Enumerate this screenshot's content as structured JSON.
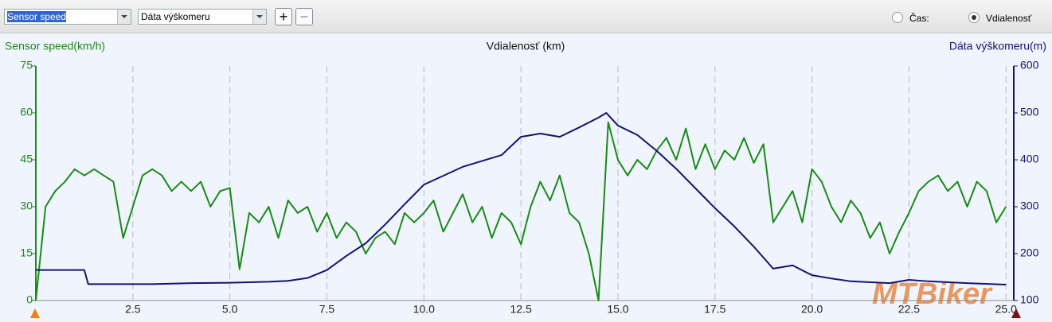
{
  "toolbar": {
    "select1": "Sensor speed",
    "select2": "Dáta výškomeru",
    "plus": "+",
    "minus": "−",
    "radio1": "Čas:",
    "radio2": "Vdialenosť"
  },
  "watermark": "MTBiker",
  "chart_data": {
    "type": "line",
    "title": "Vdialenosť (km)",
    "y_label": "Sensor speed(km/h)",
    "y2_label": "Dáta výškomeru(m)",
    "xlim": [
      0,
      25.2
    ],
    "xticks": [
      2.5,
      {
        "value": 5,
        "label": "5.0"
      },
      7.5,
      {
        "value": 10,
        "label": "10.0"
      },
      12.5,
      {
        "value": 15,
        "label": "15.0"
      },
      17.5,
      {
        "value": 20,
        "label": "20.0"
      },
      22.5,
      {
        "value": 25,
        "label": "25.0"
      }
    ],
    "ylim": [
      0,
      75
    ],
    "yticks": [
      0,
      15,
      30,
      45,
      60,
      75
    ],
    "y2lim": [
      100,
      600
    ],
    "y2ticks": [
      100,
      200,
      300,
      400,
      500,
      600
    ],
    "grid": true,
    "series": [
      {
        "name": "Sensor speed",
        "color": "#1a8a1a",
        "x": [
          0,
          0.25,
          0.5,
          0.75,
          1,
          1.25,
          1.5,
          1.75,
          2,
          2.25,
          2.5,
          2.75,
          3,
          3.25,
          3.5,
          3.75,
          4,
          4.25,
          4.5,
          4.75,
          5,
          5.25,
          5.5,
          5.75,
          6,
          6.25,
          6.5,
          6.75,
          7,
          7.25,
          7.5,
          7.75,
          8,
          8.25,
          8.5,
          8.75,
          9,
          9.25,
          9.5,
          9.75,
          10,
          10.25,
          10.5,
          10.75,
          11,
          11.25,
          11.5,
          11.75,
          12,
          12.25,
          12.5,
          12.75,
          13,
          13.25,
          13.5,
          13.75,
          14,
          14.25,
          14.5,
          14.75,
          15,
          15.25,
          15.5,
          15.75,
          16,
          16.25,
          16.5,
          16.75,
          17,
          17.25,
          17.5,
          17.75,
          18,
          18.25,
          18.5,
          18.75,
          19,
          19.25,
          19.5,
          19.75,
          20,
          20.25,
          20.5,
          20.75,
          21,
          21.25,
          21.5,
          21.75,
          22,
          22.25,
          22.5,
          22.75,
          23,
          23.25,
          23.5,
          23.75,
          24,
          24.25,
          24.5,
          24.75,
          25
        ],
        "values": [
          0,
          30,
          35,
          38,
          42,
          40,
          42,
          40,
          38,
          20,
          30,
          40,
          42,
          40,
          35,
          38,
          35,
          38,
          30,
          35,
          36,
          10,
          28,
          25,
          30,
          20,
          32,
          28,
          30,
          22,
          28,
          20,
          25,
          22,
          15,
          20,
          22,
          18,
          28,
          25,
          28,
          32,
          22,
          28,
          34,
          25,
          30,
          20,
          28,
          25,
          18,
          30,
          38,
          32,
          40,
          28,
          25,
          15,
          0,
          57,
          45,
          40,
          45,
          42,
          48,
          52,
          45,
          55,
          42,
          50,
          42,
          48,
          45,
          52,
          44,
          50,
          25,
          30,
          35,
          25,
          42,
          38,
          30,
          25,
          32,
          28,
          20,
          25,
          15,
          22,
          28,
          35,
          38,
          40,
          35,
          38,
          30,
          38,
          35,
          25,
          30
        ]
      },
      {
        "name": "Dáta výškomeru",
        "color": "#14146e",
        "axis": "y2",
        "x": [
          0,
          1.25,
          1.35,
          2,
          3,
          4,
          5,
          6,
          6.5,
          7,
          7.5,
          8,
          8.5,
          9,
          9.5,
          10,
          11,
          12,
          12.5,
          13,
          13.5,
          14,
          14.5,
          14.7,
          15,
          15.5,
          16,
          16.5,
          17,
          17.5,
          18,
          18.5,
          19,
          19.5,
          20,
          20.5,
          21,
          22,
          22.5,
          23,
          24,
          25
        ],
        "values": [
          165,
          165,
          135,
          135,
          135,
          137,
          138,
          140,
          142,
          148,
          165,
          195,
          222,
          262,
          305,
          347,
          385,
          410,
          449,
          456,
          449,
          469,
          490,
          500,
          473,
          453,
          419,
          381,
          339,
          297,
          258,
          215,
          168,
          175,
          154,
          147,
          141,
          137,
          144,
          141,
          137,
          134
        ]
      }
    ]
  }
}
